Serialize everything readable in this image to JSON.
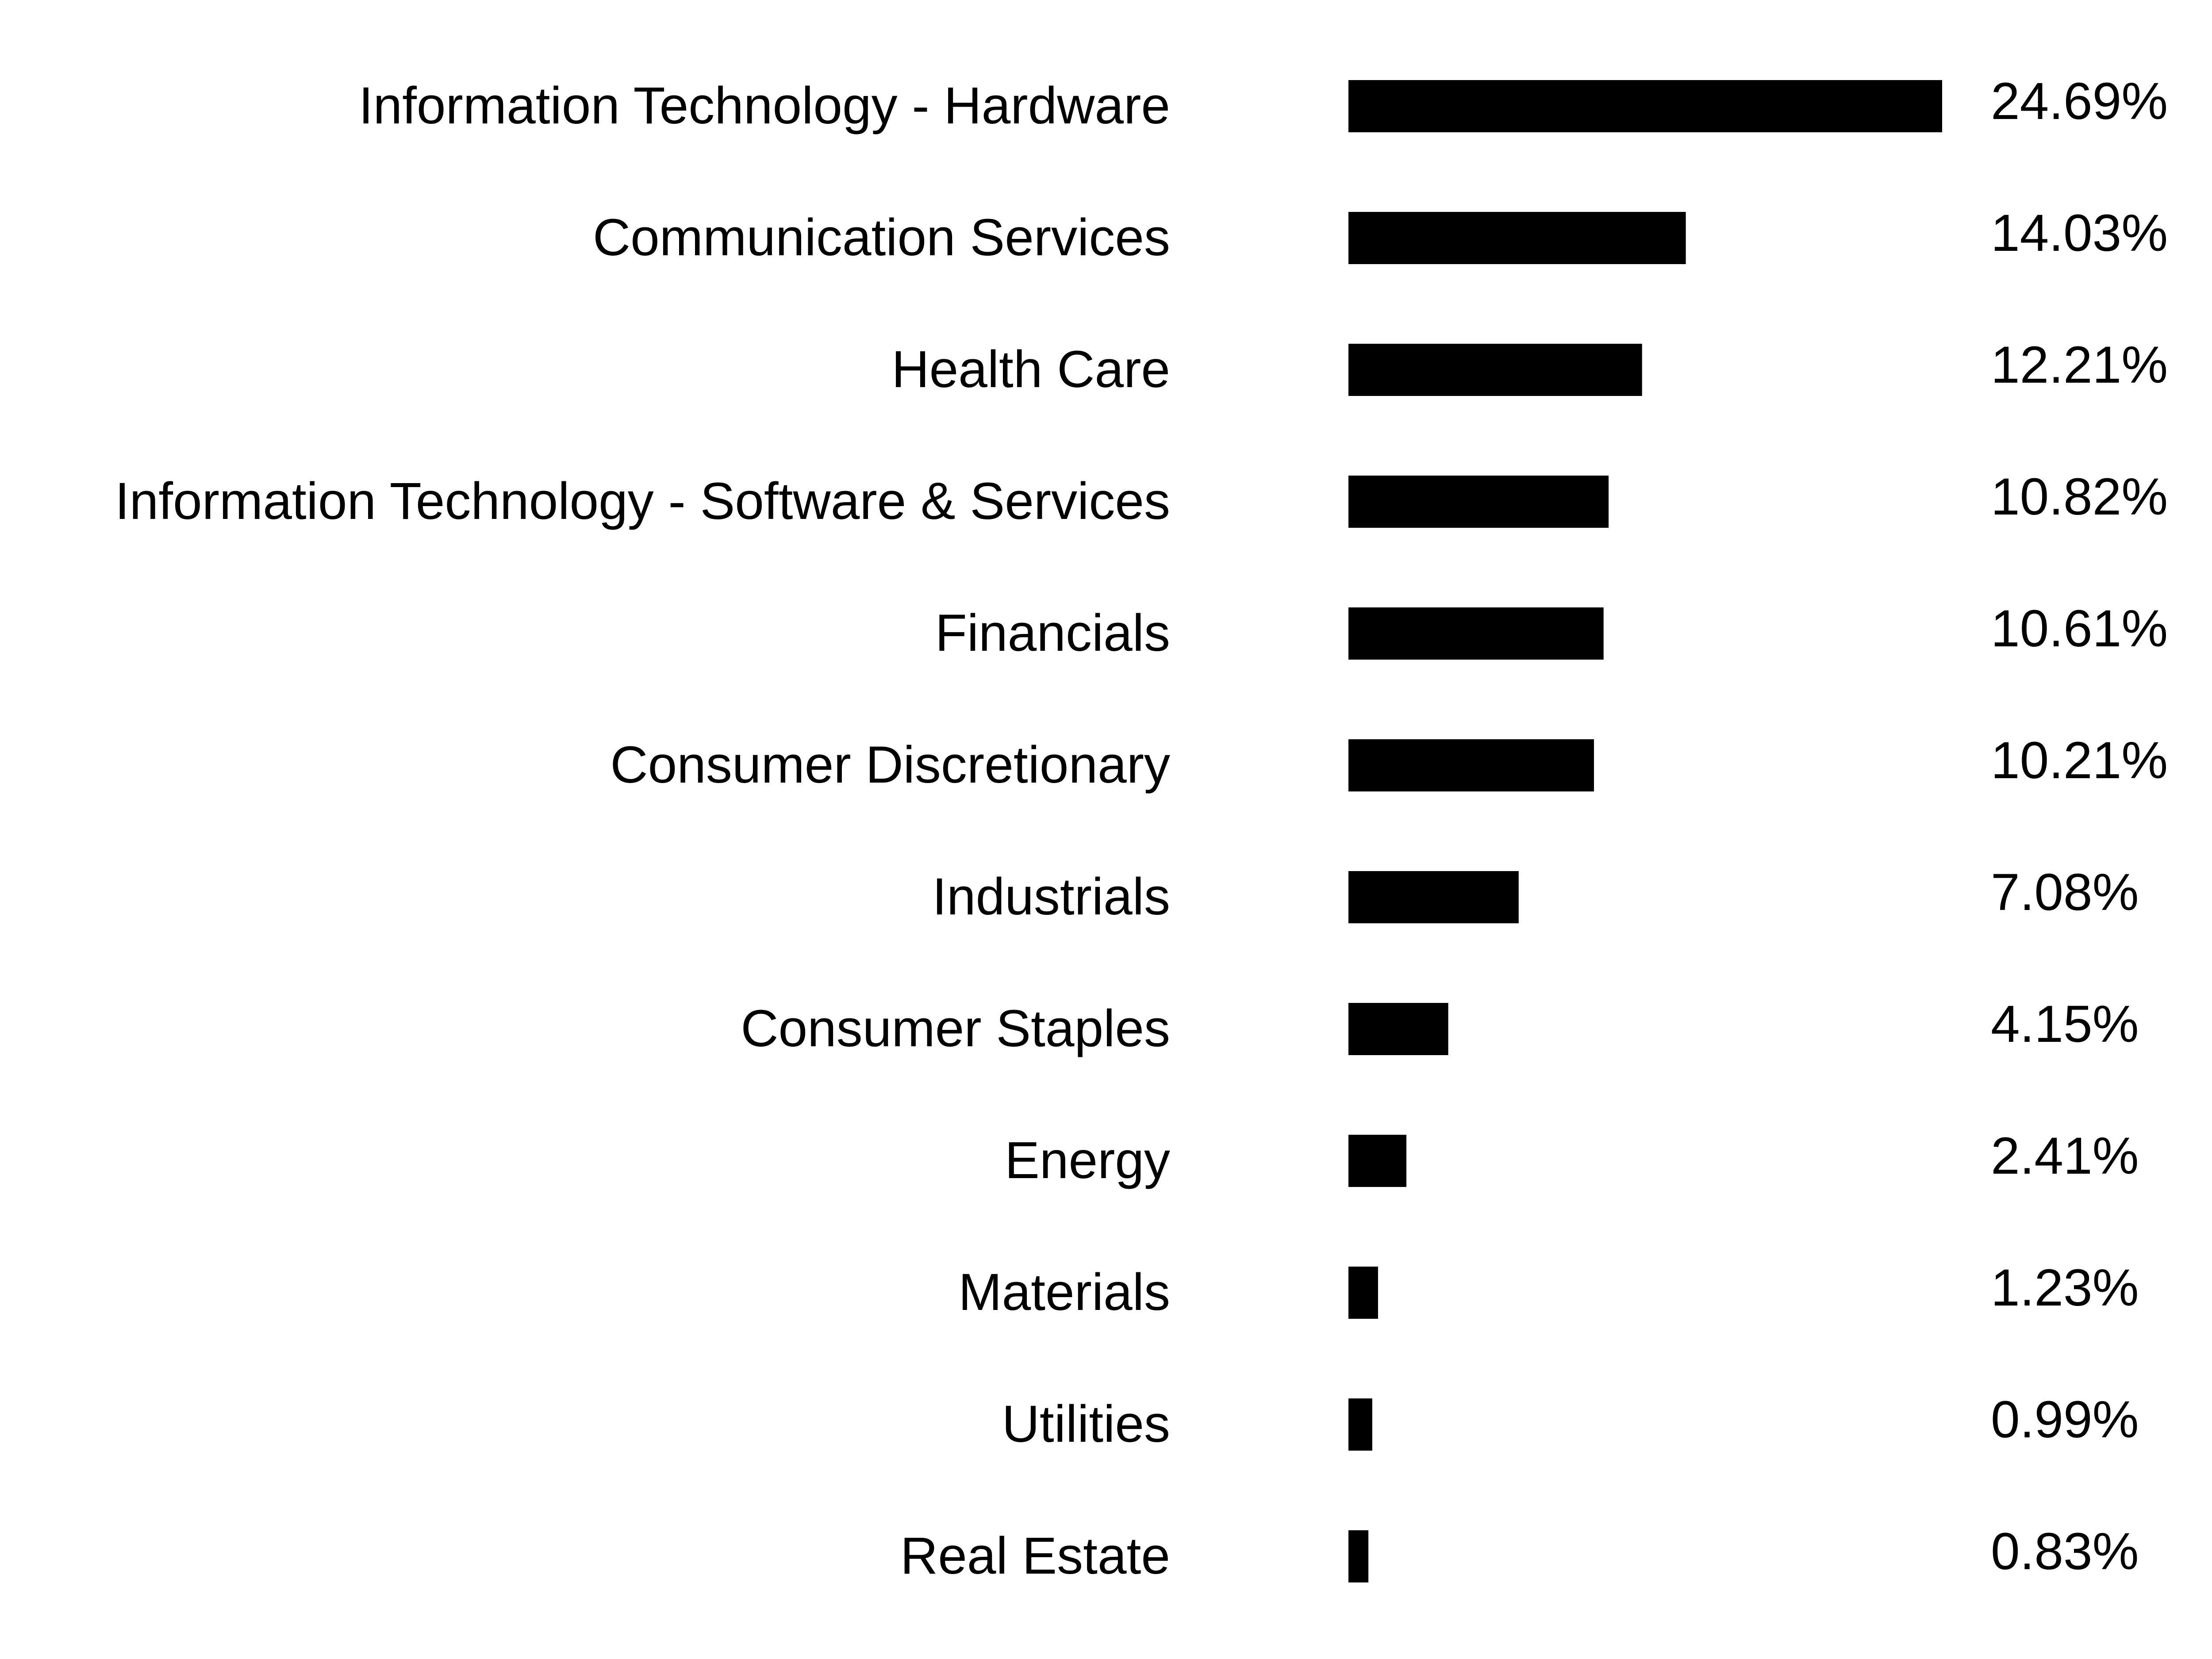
{
  "chart_data": {
    "type": "bar",
    "orientation": "horizontal",
    "categories": [
      "Information Technology - Hardware",
      "Communication Services",
      "Health Care",
      "Information Technology - Software & Services",
      "Financials",
      "Consumer Discretionary",
      "Industrials",
      "Consumer Staples",
      "Energy",
      "Materials",
      "Utilities",
      "Real Estate"
    ],
    "values": [
      24.69,
      14.03,
      12.21,
      10.82,
      10.61,
      10.21,
      7.08,
      4.15,
      2.41,
      1.23,
      0.99,
      0.83
    ],
    "value_labels": [
      "24.69%",
      "14.03%",
      "12.21%",
      "10.82%",
      "10.61%",
      "10.21%",
      "7.08%",
      "4.15%",
      "2.41%",
      "1.23%",
      "0.99%",
      "0.83%"
    ],
    "unit": "%",
    "title": "",
    "xlabel": "",
    "ylabel": "",
    "grid": false,
    "legend": "none",
    "bar_color": "#000000",
    "text_color": "#000000"
  }
}
